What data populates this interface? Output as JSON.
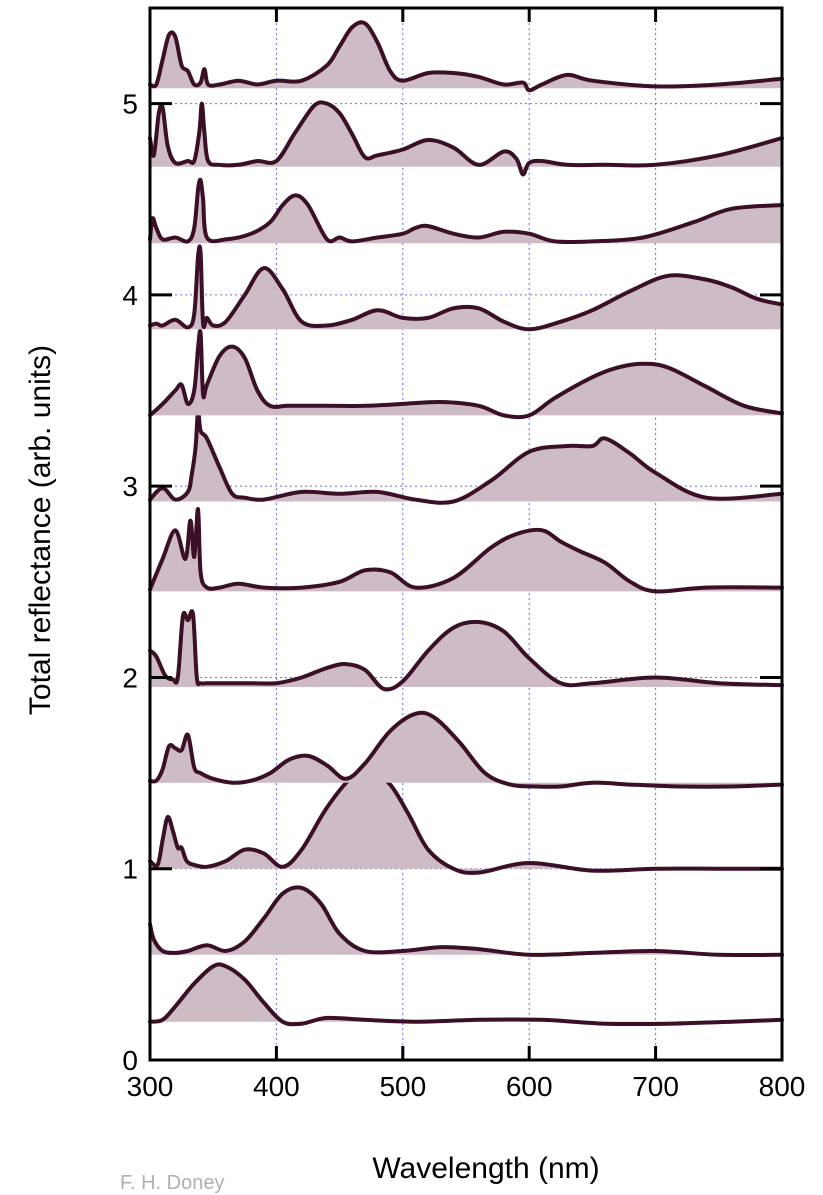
{
  "chart_data": {
    "type": "area",
    "xlabel": "Wavelength (nm)",
    "ylabel": "Total reflectance (arb. units)",
    "xlim": [
      300,
      800
    ],
    "ylim": [
      0,
      5.5
    ],
    "xticks": [
      300,
      400,
      500,
      600,
      700,
      800
    ],
    "yticks": [
      0,
      1,
      2,
      3,
      4,
      5
    ],
    "grid": "dotted",
    "fill_color": "#cdbcc6",
    "line_color": "#3b0f26",
    "series": [
      {
        "baseline": 0.2,
        "x": [
          300,
          310,
          320,
          335,
          350,
          360,
          375,
          390,
          405,
          420,
          440,
          470,
          510,
          560,
          610,
          660,
          710,
          760,
          800
        ],
        "y": [
          0.2,
          0.21,
          0.28,
          0.4,
          0.49,
          0.49,
          0.42,
          0.3,
          0.2,
          0.19,
          0.22,
          0.21,
          0.2,
          0.21,
          0.21,
          0.19,
          0.19,
          0.2,
          0.21
        ]
      },
      {
        "baseline": 0.55,
        "x": [
          300,
          303,
          310,
          320,
          330,
          345,
          360,
          375,
          390,
          405,
          420,
          435,
          450,
          470,
          500,
          530,
          560,
          600,
          650,
          700,
          750,
          800
        ],
        "y": [
          0.71,
          0.63,
          0.57,
          0.56,
          0.57,
          0.6,
          0.57,
          0.62,
          0.74,
          0.87,
          0.9,
          0.82,
          0.66,
          0.57,
          0.57,
          0.59,
          0.58,
          0.55,
          0.56,
          0.57,
          0.55,
          0.55
        ]
      },
      {
        "baseline": 1.0,
        "x": [
          300,
          306,
          310,
          314,
          318,
          322,
          325,
          329,
          335,
          345,
          360,
          375,
          390,
          405,
          420,
          440,
          460,
          475,
          490,
          505,
          520,
          540,
          560,
          600,
          650,
          700,
          750,
          800
        ],
        "y": [
          1.04,
          1.02,
          1.15,
          1.27,
          1.2,
          1.11,
          1.11,
          1.04,
          1.02,
          1.01,
          1.04,
          1.1,
          1.08,
          1.01,
          1.1,
          1.32,
          1.48,
          1.51,
          1.44,
          1.28,
          1.1,
          1.0,
          0.98,
          1.03,
          0.99,
          1.0,
          1.0,
          1.0
        ]
      },
      {
        "baseline": 1.45,
        "x": [
          300,
          305,
          310,
          315,
          320,
          325,
          330,
          335,
          340,
          350,
          365,
          380,
          395,
          410,
          425,
          440,
          455,
          470,
          490,
          510,
          525,
          545,
          565,
          585,
          605,
          625,
          650,
          680,
          720,
          760,
          800
        ],
        "y": [
          1.46,
          1.46,
          1.52,
          1.64,
          1.63,
          1.62,
          1.7,
          1.53,
          1.5,
          1.47,
          1.45,
          1.46,
          1.5,
          1.57,
          1.59,
          1.54,
          1.47,
          1.55,
          1.72,
          1.81,
          1.79,
          1.66,
          1.5,
          1.44,
          1.43,
          1.43,
          1.45,
          1.44,
          1.43,
          1.43,
          1.44
        ]
      },
      {
        "baseline": 1.95,
        "x": [
          300,
          305,
          312,
          318,
          322,
          326,
          330,
          334,
          337,
          340,
          345,
          360,
          380,
          400,
          420,
          440,
          455,
          470,
          485,
          500,
          520,
          540,
          560,
          580,
          600,
          625,
          650,
          700,
          750,
          800
        ],
        "y": [
          2.14,
          2.11,
          2.01,
          1.99,
          2.0,
          2.32,
          2.3,
          2.33,
          2.0,
          1.97,
          1.97,
          1.97,
          1.97,
          1.97,
          2.0,
          2.05,
          2.07,
          2.04,
          1.94,
          1.98,
          2.14,
          2.26,
          2.29,
          2.24,
          2.1,
          1.97,
          1.97,
          2.0,
          1.97,
          1.96
        ]
      },
      {
        "baseline": 2.45,
        "x": [
          300,
          310,
          320,
          328,
          332,
          335,
          338,
          340,
          345,
          355,
          370,
          390,
          420,
          450,
          470,
          490,
          510,
          540,
          570,
          590,
          610,
          625,
          640,
          660,
          680,
          700,
          740,
          800
        ],
        "y": [
          2.46,
          2.62,
          2.77,
          2.62,
          2.82,
          2.63,
          2.88,
          2.55,
          2.47,
          2.47,
          2.49,
          2.47,
          2.47,
          2.5,
          2.56,
          2.55,
          2.47,
          2.52,
          2.68,
          2.75,
          2.77,
          2.71,
          2.66,
          2.6,
          2.5,
          2.45,
          2.47,
          2.47
        ]
      },
      {
        "baseline": 2.92,
        "x": [
          300,
          310,
          320,
          330,
          333,
          336,
          338,
          340,
          345,
          355,
          365,
          375,
          390,
          420,
          450,
          480,
          510,
          540,
          570,
          600,
          630,
          650,
          660,
          680,
          700,
          740,
          800
        ],
        "y": [
          2.93,
          2.99,
          2.93,
          2.97,
          3.06,
          3.2,
          3.39,
          3.29,
          3.25,
          3.1,
          2.96,
          2.94,
          2.93,
          2.97,
          2.96,
          2.97,
          2.93,
          2.92,
          3.03,
          3.18,
          3.21,
          3.21,
          3.25,
          3.17,
          3.07,
          2.94,
          2.96
        ]
      },
      {
        "baseline": 3.37,
        "x": [
          300,
          310,
          320,
          325,
          330,
          335,
          338,
          340,
          342,
          345,
          355,
          365,
          375,
          385,
          395,
          410,
          440,
          470,
          500,
          530,
          560,
          580,
          600,
          620,
          650,
          670,
          690,
          710,
          740,
          770,
          800
        ],
        "y": [
          3.37,
          3.43,
          3.5,
          3.53,
          3.43,
          3.5,
          3.72,
          3.8,
          3.48,
          3.53,
          3.68,
          3.73,
          3.67,
          3.5,
          3.42,
          3.42,
          3.42,
          3.42,
          3.43,
          3.44,
          3.42,
          3.37,
          3.37,
          3.46,
          3.57,
          3.62,
          3.64,
          3.62,
          3.52,
          3.42,
          3.38
        ]
      },
      {
        "baseline": 3.82,
        "x": [
          300,
          305,
          310,
          320,
          330,
          335,
          338,
          340,
          342,
          345,
          350,
          360,
          375,
          390,
          405,
          420,
          440,
          460,
          480,
          500,
          520,
          540,
          560,
          580,
          600,
          625,
          650,
          680,
          710,
          740,
          760,
          780,
          800
        ],
        "y": [
          3.84,
          3.85,
          3.84,
          3.87,
          3.83,
          3.9,
          4.2,
          4.22,
          3.85,
          3.88,
          3.84,
          3.86,
          4.0,
          4.14,
          4.03,
          3.86,
          3.84,
          3.87,
          3.92,
          3.88,
          3.88,
          3.93,
          3.93,
          3.86,
          3.82,
          3.86,
          3.92,
          4.02,
          4.1,
          4.08,
          4.04,
          3.98,
          3.95
        ]
      },
      {
        "baseline": 4.27,
        "x": [
          300,
          302,
          305,
          310,
          320,
          330,
          335,
          338,
          340,
          342,
          345,
          360,
          380,
          395,
          405,
          415,
          425,
          440,
          450,
          460,
          480,
          500,
          510,
          520,
          540,
          560,
          580,
          600,
          620,
          650,
          690,
          730,
          760,
          800
        ],
        "y": [
          4.29,
          4.4,
          4.35,
          4.29,
          4.3,
          4.28,
          4.35,
          4.55,
          4.6,
          4.5,
          4.3,
          4.29,
          4.32,
          4.38,
          4.47,
          4.52,
          4.47,
          4.29,
          4.3,
          4.28,
          4.3,
          4.32,
          4.35,
          4.36,
          4.32,
          4.3,
          4.33,
          4.32,
          4.28,
          4.28,
          4.3,
          4.38,
          4.45,
          4.47
        ]
      },
      {
        "baseline": 4.67,
        "x": [
          300,
          303,
          307,
          310,
          314,
          320,
          330,
          335,
          339,
          341,
          343,
          346,
          355,
          370,
          385,
          400,
          415,
          430,
          440,
          450,
          460,
          470,
          480,
          500,
          520,
          540,
          560,
          580,
          590,
          595,
          600,
          610,
          630,
          660,
          700,
          750,
          800
        ],
        "y": [
          4.82,
          4.73,
          4.95,
          4.98,
          4.78,
          4.69,
          4.7,
          4.7,
          4.85,
          5.0,
          4.85,
          4.7,
          4.68,
          4.68,
          4.7,
          4.7,
          4.85,
          4.99,
          5.0,
          4.95,
          4.84,
          4.72,
          4.73,
          4.76,
          4.81,
          4.77,
          4.68,
          4.75,
          4.71,
          4.63,
          4.69,
          4.7,
          4.68,
          4.68,
          4.68,
          4.73,
          4.82
        ]
      },
      {
        "baseline": 5.08,
        "x": [
          300,
          305,
          310,
          315,
          320,
          325,
          330,
          335,
          340,
          343,
          346,
          355,
          370,
          385,
          400,
          420,
          440,
          450,
          460,
          470,
          480,
          490,
          500,
          520,
          540,
          560,
          580,
          595,
          600,
          610,
          630,
          650,
          700,
          750,
          800
        ],
        "y": [
          5.1,
          5.1,
          5.23,
          5.36,
          5.35,
          5.2,
          5.17,
          5.1,
          5.11,
          5.18,
          5.1,
          5.1,
          5.12,
          5.1,
          5.12,
          5.12,
          5.2,
          5.3,
          5.4,
          5.42,
          5.32,
          5.17,
          5.12,
          5.16,
          5.16,
          5.14,
          5.1,
          5.11,
          5.07,
          5.1,
          5.15,
          5.12,
          5.09,
          5.1,
          5.13
        ]
      }
    ]
  },
  "credit": "F. H. Doney"
}
